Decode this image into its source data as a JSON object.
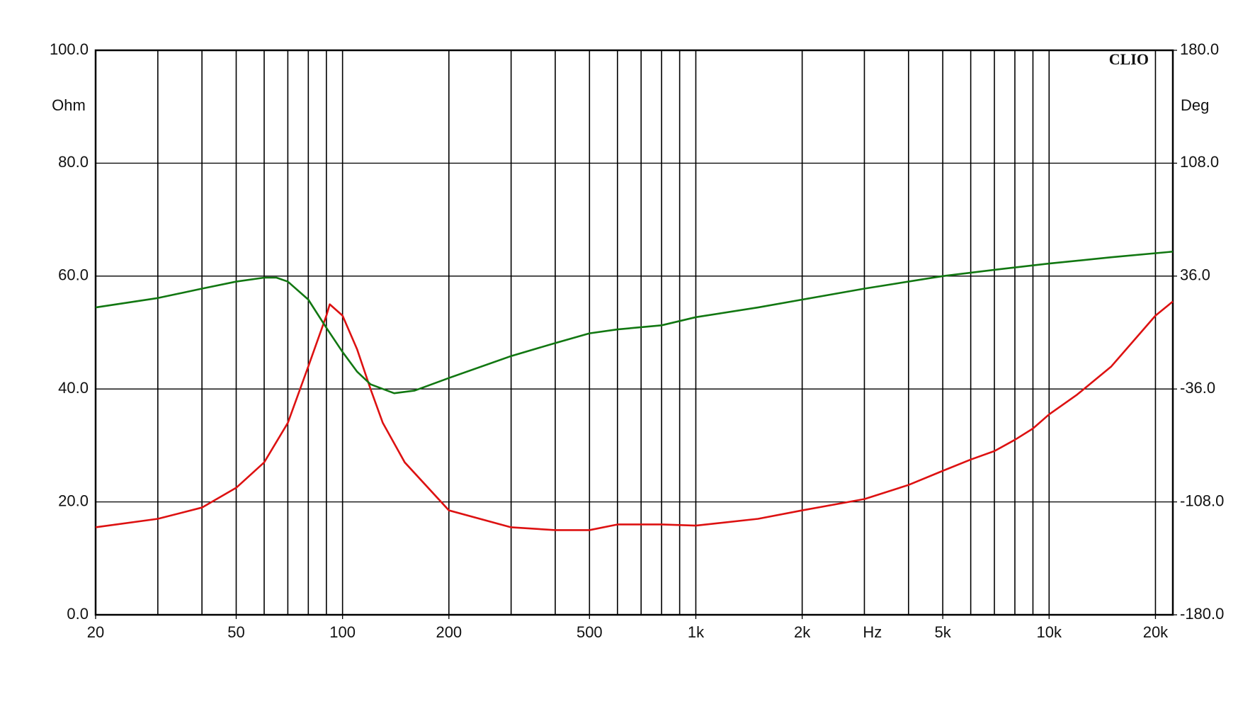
{
  "chart_data": {
    "type": "line",
    "brand": "CLIO",
    "y_label": "Ohm",
    "y2_label": "Deg",
    "x_label": "Hz",
    "log_x": true,
    "grid": true,
    "xlim": [
      20,
      22400
    ],
    "xticks": [
      20,
      50,
      100,
      200,
      500,
      {
        "value": 1000,
        "label": "1k"
      },
      {
        "value": 2000,
        "label": "2k"
      },
      {
        "value": 5000,
        "label": "5k"
      },
      {
        "value": 10000,
        "label": "10k"
      },
      {
        "value": 20000,
        "label": "20k"
      }
    ],
    "xgrid": [
      20,
      30,
      40,
      50,
      60,
      70,
      80,
      90,
      100,
      200,
      300,
      400,
      500,
      600,
      700,
      800,
      900,
      1000,
      2000,
      3000,
      4000,
      5000,
      6000,
      7000,
      8000,
      9000,
      10000,
      20000
    ],
    "ylim": [
      0,
      100
    ],
    "yticks": [
      {
        "value": 0,
        "label": "0.0"
      },
      {
        "value": 20,
        "label": "20.0"
      },
      {
        "value": 40,
        "label": "40.0"
      },
      {
        "value": 60,
        "label": "60.0"
      },
      {
        "value": 80,
        "label": "80.0"
      },
      {
        "value": 100,
        "label": "100.0"
      }
    ],
    "y2lim": [
      -180,
      180
    ],
    "y2ticks": [
      {
        "value": -180,
        "label": "-180.0"
      },
      {
        "value": -108,
        "label": "-108.0"
      },
      {
        "value": -36,
        "label": "-36.0"
      },
      {
        "value": 36,
        "label": "36.0"
      },
      {
        "value": 108,
        "label": "108.0"
      },
      {
        "value": 180,
        "label": "180.0"
      }
    ],
    "series": [
      {
        "color": "#dd1111",
        "axis": "y",
        "x": [
          20,
          30,
          40,
          50,
          60,
          70,
          80,
          90,
          92,
          100,
          110,
          120,
          130,
          150,
          200,
          300,
          400,
          500,
          600,
          800,
          1000,
          1500,
          2000,
          3000,
          4000,
          5000,
          6000,
          7000,
          8000,
          9000,
          10000,
          12000,
          15000,
          20000,
          22400
        ],
        "values": [
          15.5,
          17,
          19,
          22.5,
          27,
          34,
          44,
          53,
          55,
          53,
          47,
          40,
          34,
          27,
          18.5,
          15.5,
          15,
          15,
          16,
          16,
          15.8,
          17,
          18.5,
          20.5,
          23,
          25.5,
          27.5,
          29,
          31,
          33,
          35.5,
          39,
          44,
          53,
          55.5
        ]
      },
      {
        "color": "#117711",
        "axis": "y2",
        "x": [
          20,
          30,
          40,
          50,
          60,
          65,
          70,
          80,
          90,
          100,
          110,
          120,
          140,
          160,
          200,
          300,
          400,
          500,
          600,
          800,
          1000,
          1500,
          2000,
          3000,
          5000,
          7000,
          10000,
          15000,
          22400
        ],
        "values": [
          16,
          22,
          28,
          32.5,
          35,
          35,
          32.5,
          21,
          3,
          -12.4,
          -25,
          -33,
          -38.7,
          -37,
          -29,
          -15,
          -6.7,
          -0.5,
          2,
          4.6,
          9.8,
          16,
          21,
          28,
          36,
          40,
          44,
          48,
          51.6
        ]
      }
    ]
  }
}
